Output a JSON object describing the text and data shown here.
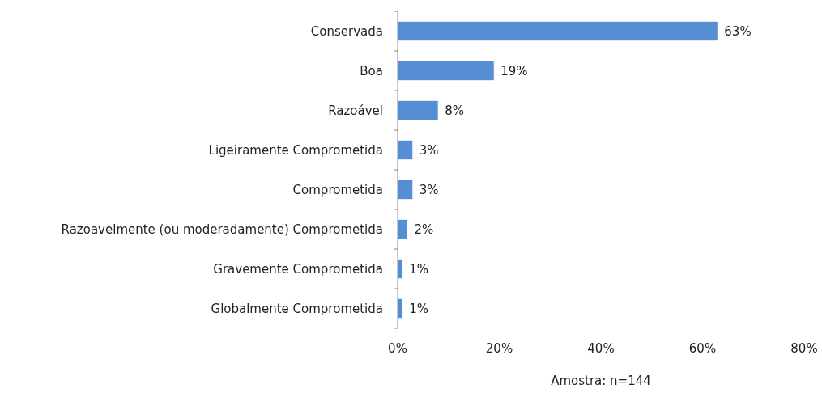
{
  "chart_data": {
    "type": "bar",
    "orientation": "horizontal",
    "categories": [
      "Conservada",
      "Boa",
      "Razoável",
      "Ligeiramente Comprometida",
      "Comprometida",
      "Razoavelmente (ou moderadamente) Comprometida",
      "Gravemente Comprometida",
      "Globalmente Comprometida"
    ],
    "values": [
      63,
      19,
      8,
      3,
      3,
      2,
      1,
      1
    ],
    "color": "#558ed5",
    "value_labels": [
      "63%",
      "19%",
      "8%",
      "3%",
      "3%",
      "2%",
      "1%",
      "1%"
    ],
    "xlim": [
      0,
      80
    ],
    "xticks": [
      {
        "value": 0,
        "label": "0%"
      },
      {
        "value": 20,
        "label": "20%"
      },
      {
        "value": 40,
        "label": "40%"
      },
      {
        "value": 60,
        "label": "60%"
      },
      {
        "value": 80,
        "label": "80%"
      }
    ],
    "grid": false,
    "annotations": [
      "Amostra: n=144"
    ]
  }
}
